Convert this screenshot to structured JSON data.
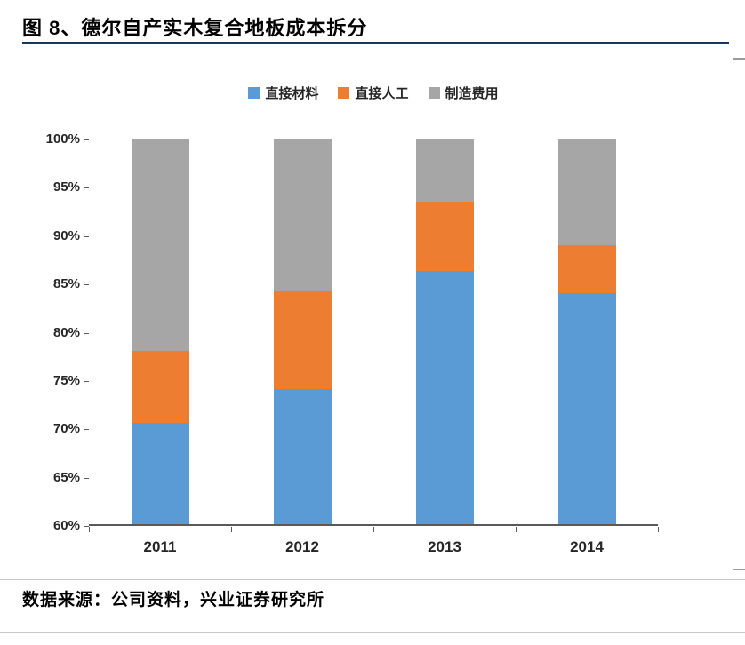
{
  "page": {
    "title": "图 8、德尔自产实木复合地板成本拆分",
    "source": "数据来源：公司资料，兴业证券研究所"
  },
  "colors": {
    "title_underline": "#17375E",
    "axis": "#595959",
    "series_blue": "#5B9BD5",
    "series_orange": "#ED7D31",
    "series_gray": "#A6A6A6"
  },
  "chart_data": {
    "type": "bar",
    "stacked": true,
    "title": "图 8、德尔自产实木复合地板成本拆分",
    "categories": [
      "2011",
      "2012",
      "2013",
      "2014"
    ],
    "series": [
      {
        "name": "直接材料",
        "color": "#5B9BD5",
        "values": [
          70.5,
          74,
          86.3,
          84
        ]
      },
      {
        "name": "直接人工",
        "color": "#ED7D31",
        "values": [
          7.5,
          10.3,
          7.2,
          5
        ]
      },
      {
        "name": "制造费用",
        "color": "#A6A6A6",
        "values": [
          22,
          15.7,
          6.5,
          11
        ]
      }
    ],
    "xlabel": "",
    "ylabel": "",
    "ylim": [
      60,
      100
    ],
    "yticks": [
      "100%",
      "95%",
      "90%",
      "85%",
      "80%",
      "75%",
      "70%",
      "65%",
      "60%"
    ],
    "ytick_values": [
      100,
      95,
      90,
      85,
      80,
      75,
      70,
      65,
      60
    ],
    "legend_position": "top",
    "grid": false
  }
}
